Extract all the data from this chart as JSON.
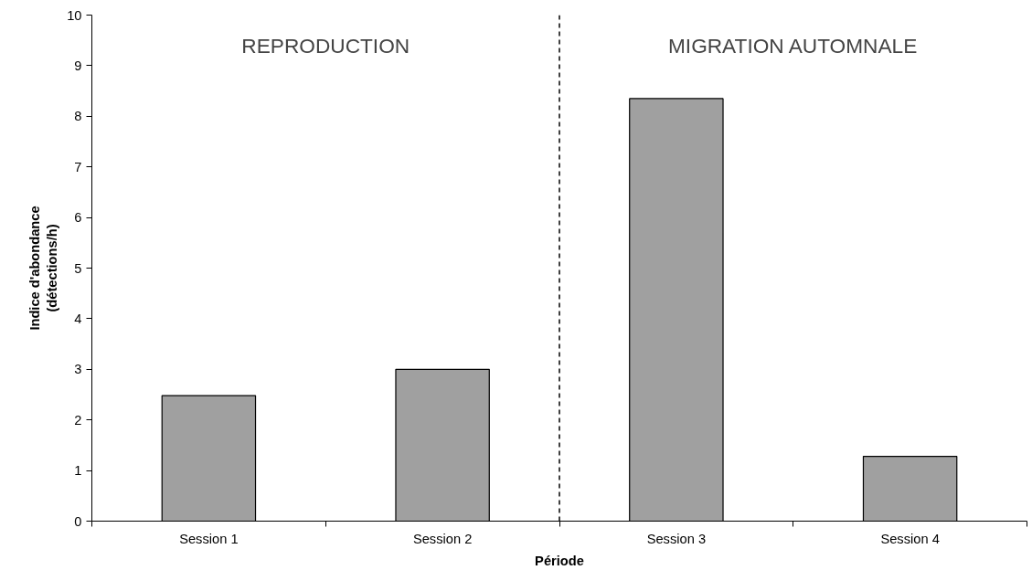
{
  "chart_data": {
    "type": "bar",
    "xlabel": "Période",
    "ylabel": "Indice d'abondance\n(détections/h)",
    "categories": [
      "Session 1",
      "Session 2",
      "Session 3",
      "Session 4"
    ],
    "values": [
      2.48,
      3.0,
      8.35,
      1.28
    ],
    "color": "#a0a0a0",
    "ylim": [
      0,
      10
    ],
    "yticks": [
      0,
      1,
      2,
      3,
      4,
      5,
      6,
      7,
      8,
      9,
      10
    ],
    "grid": false,
    "annotations": [
      "REPRODUCTION",
      "MIGRATION AUTOMNALE"
    ]
  }
}
